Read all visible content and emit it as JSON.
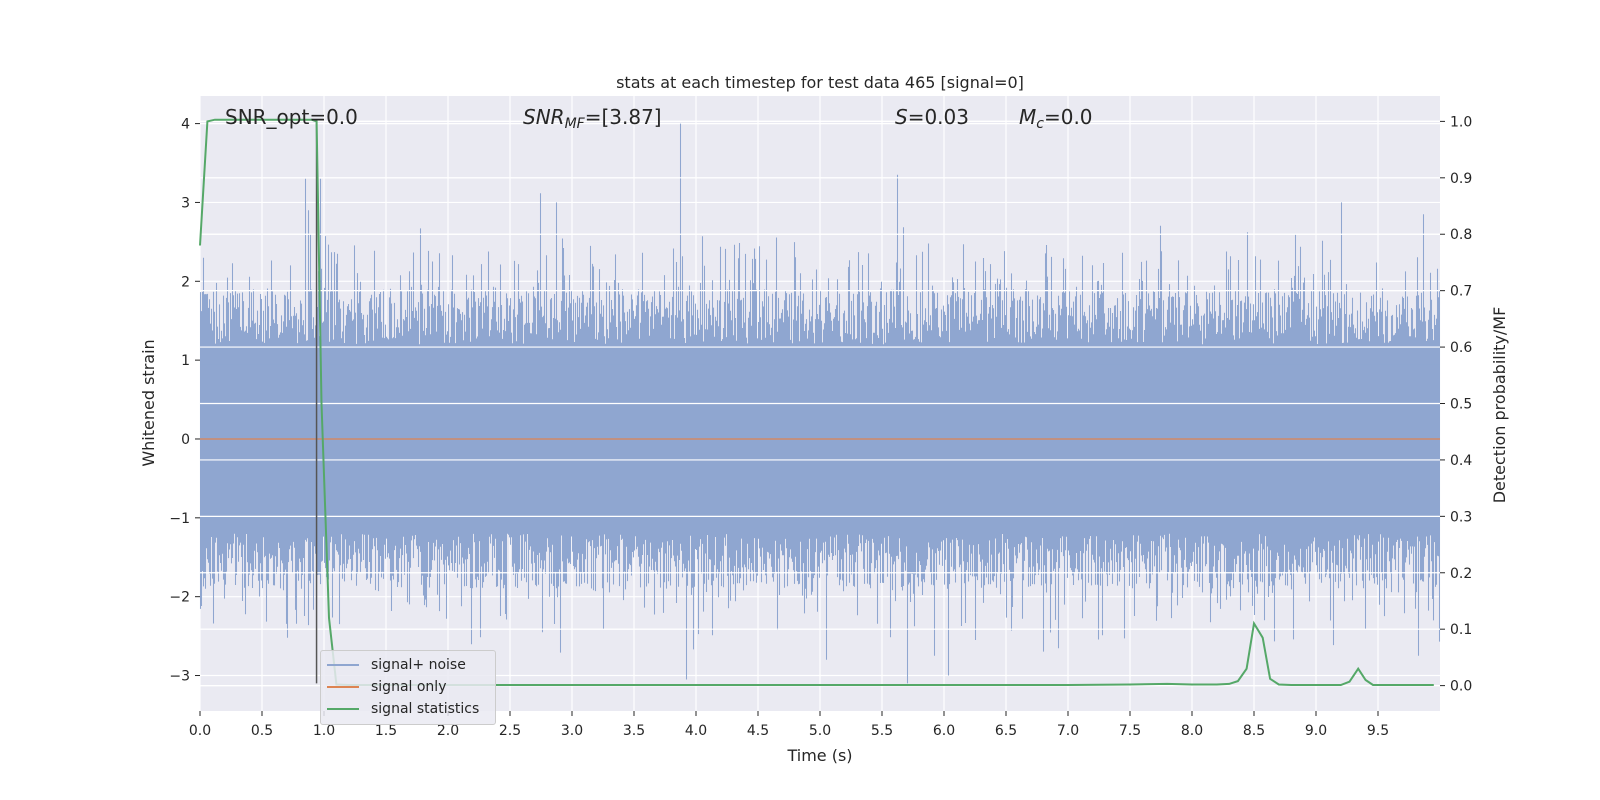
{
  "chart_data": {
    "type": "line",
    "title": "stats at each timestep for test data 465 [signal=0]",
    "xlabel": "Time (s)",
    "ylabel_left": "Whitened strain",
    "ylabel_right": "Detection probability/MF",
    "xlim": [
      0.0,
      10.0
    ],
    "ylim_left": [
      -3.45,
      4.35
    ],
    "ylim_right": [
      -0.045,
      1.045
    ],
    "x_ticks": [
      0.0,
      0.5,
      1.0,
      1.5,
      2.0,
      2.5,
      3.0,
      3.5,
      4.0,
      4.5,
      5.0,
      5.5,
      6.0,
      6.5,
      7.0,
      7.5,
      8.0,
      8.5,
      9.0,
      9.5
    ],
    "x_tick_labels": [
      "0.0",
      "0.5",
      "1.0",
      "1.5",
      "2.0",
      "2.5",
      "3.0",
      "3.5",
      "4.0",
      "4.5",
      "5.0",
      "5.5",
      "6.0",
      "6.5",
      "7.0",
      "7.5",
      "8.0",
      "8.5",
      "9.0",
      "9.5"
    ],
    "y_left_ticks": [
      -3,
      -2,
      -1,
      0,
      1,
      2,
      3,
      4
    ],
    "y_left_tick_labels": [
      "−3",
      "−2",
      "−1",
      "0",
      "1",
      "2",
      "3",
      "4"
    ],
    "y_right_ticks": [
      0.0,
      0.1,
      0.2,
      0.3,
      0.4,
      0.5,
      0.6,
      0.7,
      0.8,
      0.9,
      1.0
    ],
    "y_right_tick_labels": [
      "0.0",
      "0.1",
      "0.2",
      "0.3",
      "0.4",
      "0.5",
      "0.6",
      "0.7",
      "0.8",
      "0.9",
      "1.0"
    ],
    "grid": true,
    "legend_position": "lower-left",
    "annotations": {
      "snr_opt": "SNR_opt=0.0",
      "snr_mf_sym": "SNR",
      "snr_mf_sub": "MF",
      "snr_mf_val": "=[3.87]",
      "s_sym": "S",
      "s_val": "=0.03",
      "mc_sym": "M",
      "mc_sub": "c",
      "mc_val": "=0.0"
    },
    "series": [
      {
        "name": "signal+ noise",
        "color": "#8fa6d0",
        "axis": "left",
        "description_of_values": "noisy strain, roughly within -2.6 to 2.6, peaks ~4.0 at t=3.87",
        "peaks": [
          {
            "x": 0.85,
            "y": 3.3
          },
          {
            "x": 0.87,
            "y": 2.9
          },
          {
            "x": 0.97,
            "y": 3.3
          },
          {
            "x": 2.87,
            "y": 3.0
          },
          {
            "x": 3.87,
            "y": 4.0
          },
          {
            "x": 5.62,
            "y": 3.35
          },
          {
            "x": 9.2,
            "y": 3.0
          },
          {
            "x": 9.86,
            "y": 2.85
          },
          {
            "x": 3.92,
            "y": -3.05
          },
          {
            "x": 5.7,
            "y": -3.1
          },
          {
            "x": 5.05,
            "y": -2.8
          },
          {
            "x": 6.03,
            "y": -3.0
          },
          {
            "x": 9.82,
            "y": -2.75
          }
        ]
      },
      {
        "name": "signal only",
        "color": "#dd8452",
        "axis": "left",
        "x": [
          0.0,
          10.0
        ],
        "y": [
          0.0,
          0.0
        ]
      },
      {
        "name": "signal statistics",
        "color": "#55a868",
        "axis": "right",
        "x": [
          0.0,
          0.06,
          0.12,
          0.2,
          0.3,
          0.4,
          0.5,
          0.6,
          0.7,
          0.8,
          0.9,
          0.94,
          0.98,
          1.04,
          1.1,
          1.2,
          1.5,
          2.0,
          3.0,
          4.0,
          5.0,
          6.0,
          7.0,
          7.5,
          7.8,
          8.0,
          8.2,
          8.3,
          8.37,
          8.44,
          8.5,
          8.57,
          8.63,
          8.7,
          8.8,
          9.0,
          9.2,
          9.27,
          9.34,
          9.4,
          9.46,
          9.6,
          9.95
        ],
        "y": [
          0.78,
          1.0,
          1.003,
          1.003,
          1.003,
          1.003,
          1.003,
          1.003,
          1.003,
          1.003,
          1.003,
          1.0,
          0.5,
          0.12,
          0.002,
          0.001,
          0.001,
          0.001,
          0.001,
          0.001,
          0.001,
          0.001,
          0.001,
          0.002,
          0.003,
          0.002,
          0.002,
          0.003,
          0.008,
          0.03,
          0.11,
          0.085,
          0.012,
          0.002,
          0.001,
          0.001,
          0.001,
          0.007,
          0.03,
          0.01,
          0.001,
          0.001,
          0.001
        ]
      }
    ]
  }
}
